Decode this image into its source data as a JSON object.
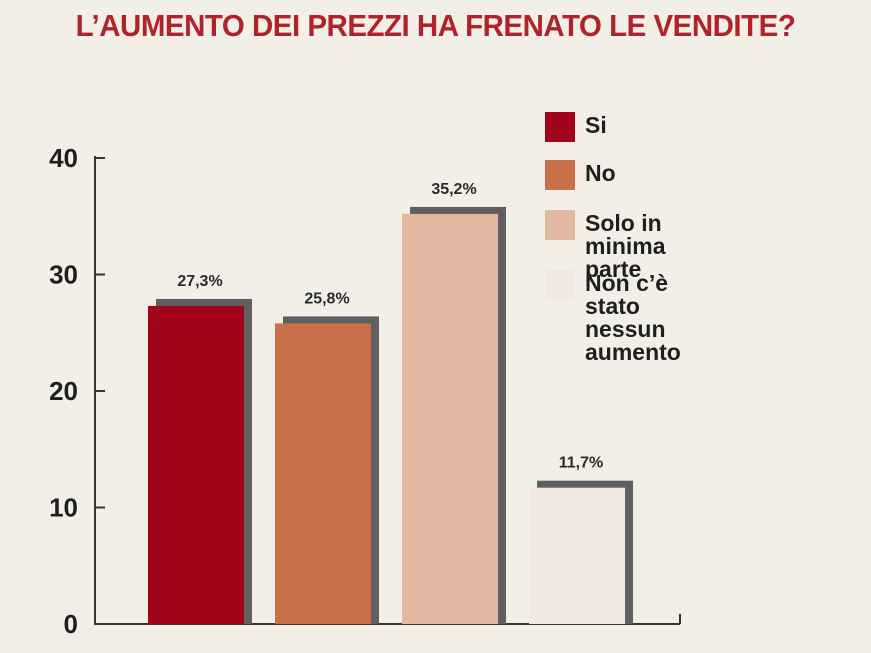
{
  "chart_data": {
    "type": "bar",
    "title": "L’AUMENTO DEI PREZZI HA FRENATO LE VENDITE?",
    "categories": [
      "Si",
      "No",
      "Solo in minima parte",
      "Non c’è stato nessun aumento"
    ],
    "values": [
      27.3,
      25.8,
      35.2,
      11.7
    ],
    "value_labels": [
      "27,3%",
      "25,8%",
      "35,2%",
      "11,7%"
    ],
    "colors": [
      "#a2041c",
      "#c9704a",
      "#e2b9a0",
      "#f2e7e1"
    ],
    "yticks": [
      0,
      10,
      20,
      30,
      40
    ],
    "ylim": [
      0,
      40
    ],
    "xlabel": "",
    "ylabel": "",
    "grid": false,
    "legend": {
      "placement": "top-right",
      "entries": [
        {
          "label": "Si",
          "color": "#a2041c"
        },
        {
          "label": "No",
          "color": "#c9704a"
        },
        {
          "label": "Solo in minima parte",
          "color": "#e2b9a0"
        },
        {
          "label": "Non c’è stato\nnessun aumento",
          "color": "#f2e7e1"
        }
      ]
    }
  }
}
